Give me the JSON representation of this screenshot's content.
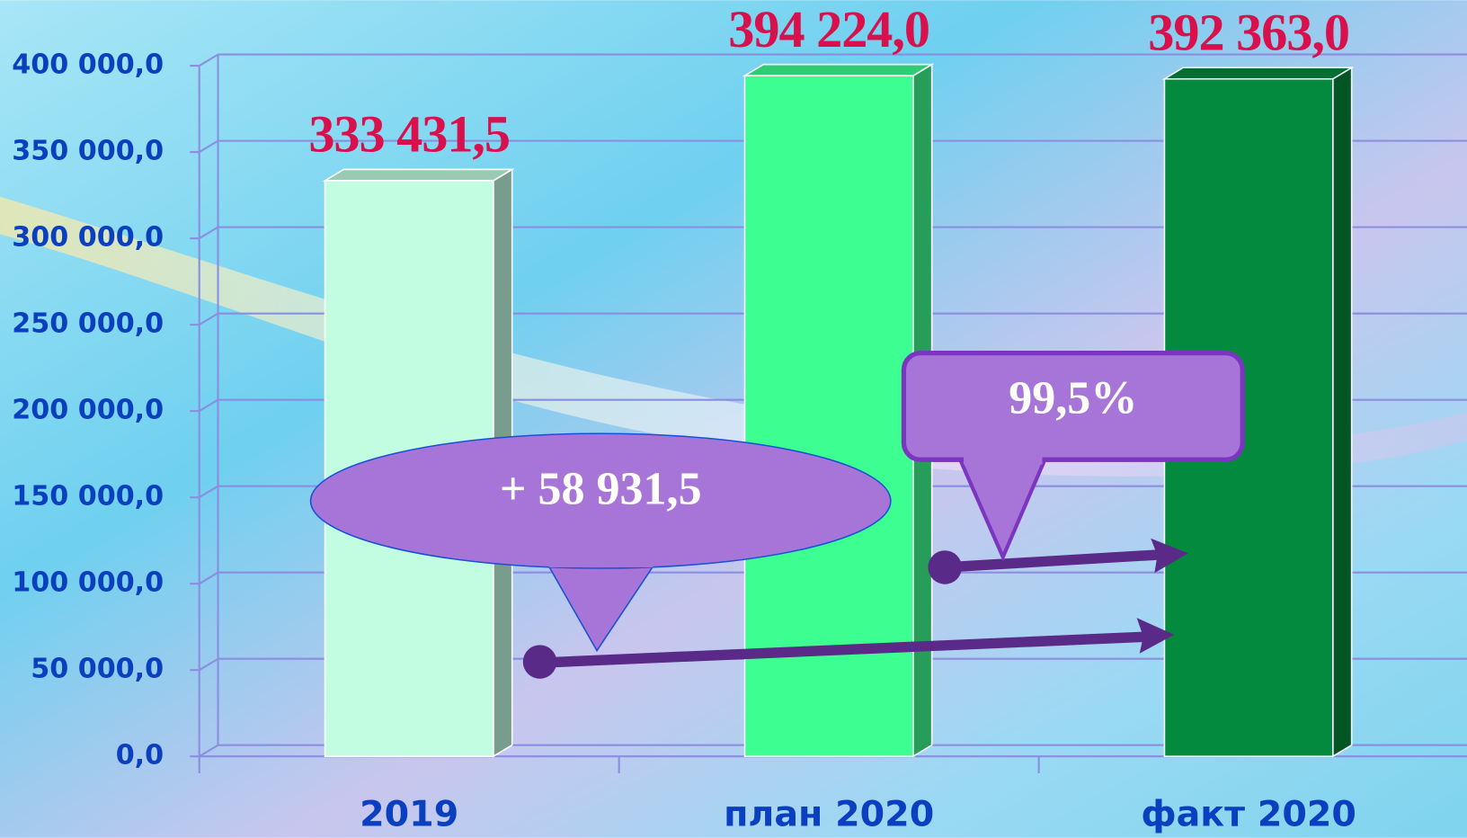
{
  "chart_data": {
    "type": "bar3d",
    "categories": [
      "2019",
      "план 2020",
      "факт 2020"
    ],
    "values": [
      333431.5,
      394224.0,
      392363.0
    ],
    "value_labels": [
      "333 431,5",
      "394 224,0",
      "392 363,0"
    ],
    "colors": [
      "#c2fde1",
      "#3dfe90",
      "#048a3e"
    ],
    "ylim": [
      0,
      400000
    ],
    "yticks": [
      {
        "value": 0,
        "label": "0,0"
      },
      {
        "value": 50000,
        "label": "50 000,0"
      },
      {
        "value": 100000,
        "label": "100 000,0"
      },
      {
        "value": 150000,
        "label": "150 000,0"
      },
      {
        "value": 200000,
        "label": "200 000,0"
      },
      {
        "value": 250000,
        "label": "250 000,0"
      },
      {
        "value": 300000,
        "label": "300 000,0"
      },
      {
        "value": 350000,
        "label": "350 000,0"
      },
      {
        "value": 400000,
        "label": "400 000,0"
      }
    ],
    "grid": true,
    "annotations": [
      "+ 58 931,5",
      "99,5%"
    ]
  }
}
